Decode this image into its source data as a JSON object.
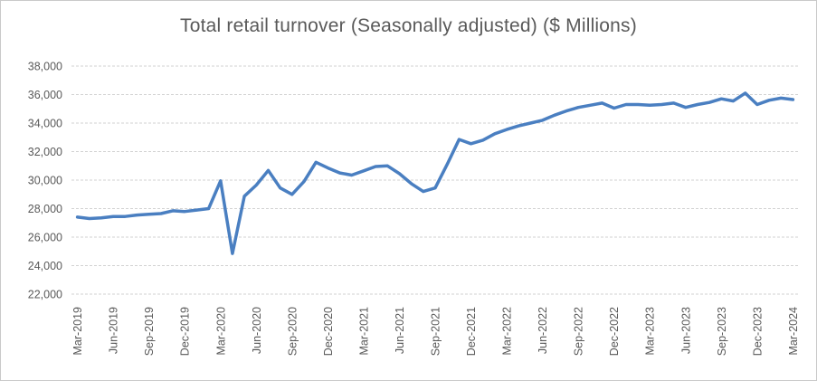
{
  "chart_data": {
    "type": "line",
    "title": "Total retail turnover (Seasonally adjusted) ($ Millions)",
    "xlabel": "",
    "ylabel": "",
    "ylim": [
      22000,
      38000
    ],
    "y_tick_step": 2000,
    "y_tick_labels": [
      "22,000",
      "24,000",
      "26,000",
      "28,000",
      "30,000",
      "32,000",
      "34,000",
      "36,000",
      "38,000"
    ],
    "grid": "horizontal-dashed",
    "legend": "none",
    "x_tick_every": 3,
    "x_tick_labels": [
      "Mar-2019",
      "Jun-2019",
      "Sep-2019",
      "Dec-2019",
      "Mar-2020",
      "Jun-2020",
      "Sep-2020",
      "Dec-2020",
      "Mar-2021",
      "Jun-2021",
      "Sep-2021",
      "Dec-2021",
      "Mar-2022",
      "Jun-2022",
      "Sep-2022",
      "Dec-2022",
      "Mar-2023",
      "Jun-2023",
      "Sep-2023",
      "Dec-2023",
      "Mar-2024"
    ],
    "x": [
      "Mar-2019",
      "Apr-2019",
      "May-2019",
      "Jun-2019",
      "Jul-2019",
      "Aug-2019",
      "Sep-2019",
      "Oct-2019",
      "Nov-2019",
      "Dec-2019",
      "Jan-2020",
      "Feb-2020",
      "Mar-2020",
      "Apr-2020",
      "May-2020",
      "Jun-2020",
      "Jul-2020",
      "Aug-2020",
      "Sep-2020",
      "Oct-2020",
      "Nov-2020",
      "Dec-2020",
      "Jan-2021",
      "Feb-2021",
      "Mar-2021",
      "Apr-2021",
      "May-2021",
      "Jun-2021",
      "Jul-2021",
      "Aug-2021",
      "Sep-2021",
      "Oct-2021",
      "Nov-2021",
      "Dec-2021",
      "Jan-2022",
      "Feb-2022",
      "Mar-2022",
      "Apr-2022",
      "May-2022",
      "Jun-2022",
      "Jul-2022",
      "Aug-2022",
      "Sep-2022",
      "Oct-2022",
      "Nov-2022",
      "Dec-2022",
      "Jan-2023",
      "Feb-2023",
      "Mar-2023",
      "Apr-2023",
      "May-2023",
      "Jun-2023",
      "Jul-2023",
      "Aug-2023",
      "Sep-2023",
      "Oct-2023",
      "Nov-2023",
      "Dec-2023",
      "Jan-2024",
      "Feb-2024",
      "Mar-2024"
    ],
    "series": [
      {
        "name": "Total retail turnover",
        "values": [
          27400,
          27300,
          27350,
          27450,
          27450,
          27550,
          27600,
          27650,
          27850,
          27800,
          27900,
          28000,
          29950,
          24850,
          28870,
          29650,
          30680,
          29450,
          29000,
          29900,
          31250,
          30850,
          30500,
          30350,
          30650,
          30950,
          31000,
          30450,
          29750,
          29200,
          29450,
          31100,
          32850,
          32550,
          32800,
          33250,
          33550,
          33800,
          34000,
          34200,
          34550,
          34850,
          35100,
          35250,
          35400,
          35050,
          35300,
          35300,
          35250,
          35300,
          35400,
          35100,
          35300,
          35450,
          35700,
          35550,
          36100,
          35300,
          35600,
          35750,
          35650
        ]
      }
    ],
    "colors": {
      "line": "#4a7fc1",
      "gridline": "#d2d2d2",
      "text": "#595959",
      "title": "#595959",
      "background": "#ffffff"
    }
  }
}
